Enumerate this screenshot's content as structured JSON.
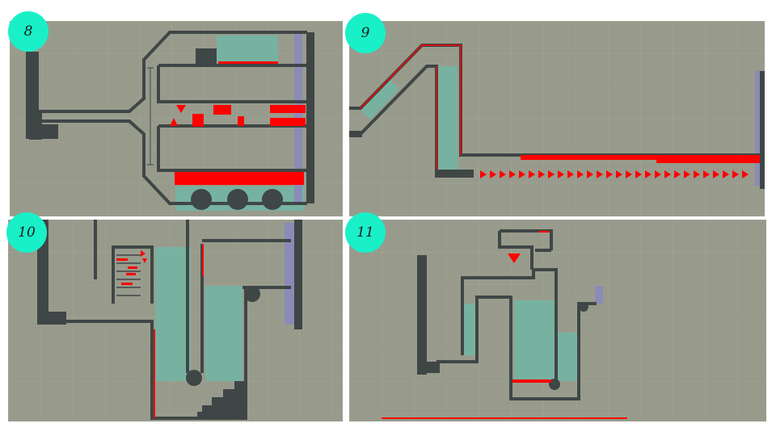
{
  "slide": {
    "background": "#ffffff",
    "panels": [
      {
        "level_label": "8"
      },
      {
        "level_label": "9"
      },
      {
        "level_label": "10"
      },
      {
        "level_label": "11"
      }
    ]
  },
  "palette": {
    "floor": "#989b8c",
    "grid": "#a1a495",
    "wall": "#3f4646",
    "hazard": "#ff0000",
    "water": "#77b2a1",
    "exit": "#8a8bb6",
    "badge": "#19f0c8"
  },
  "icons": {
    "spike": "red-triangle-spike-icon",
    "wheel": "round-platform-wheel-icon",
    "exit": "exit-door-bar-icon"
  }
}
